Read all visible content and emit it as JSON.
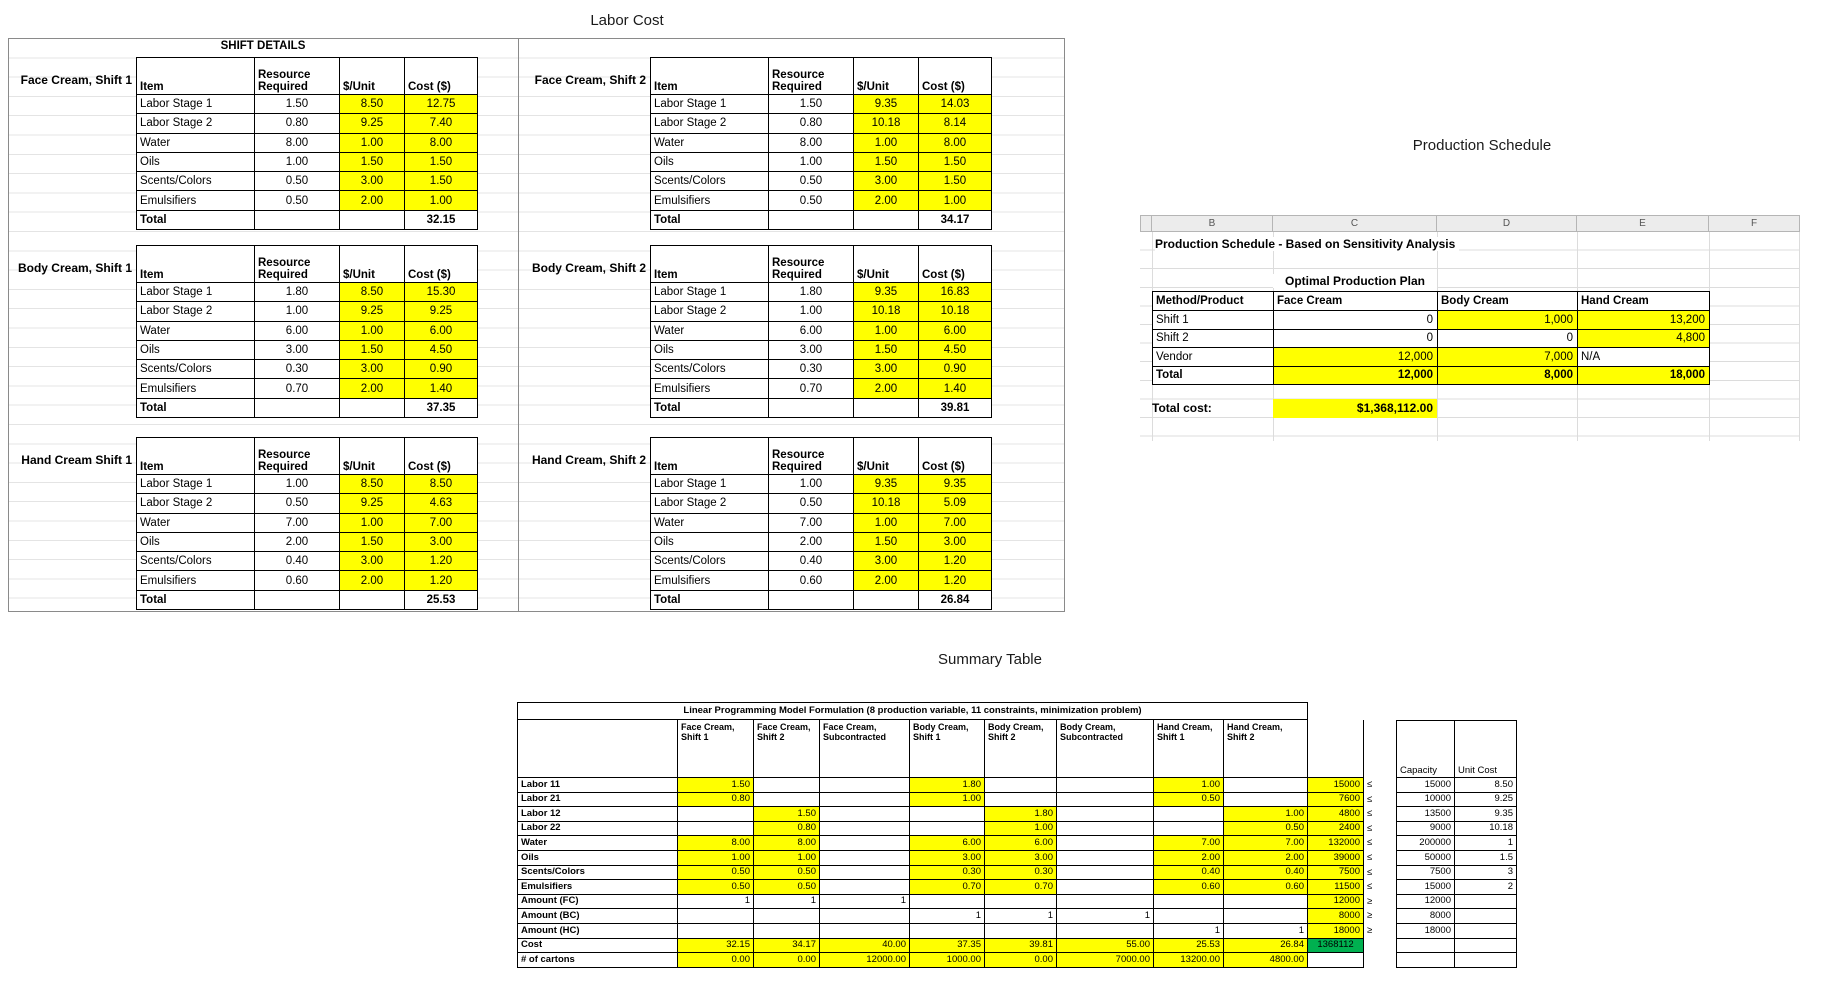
{
  "colors": {
    "highlight": "#FFFF00",
    "result_green": "#00B050",
    "gridline": "#dcdcdc"
  },
  "labor_section": {
    "title": "Labor Cost",
    "shift_details": "SHIFT DETAILS",
    "headers": {
      "item": "Item",
      "resource_line1": "Resource",
      "resource_line2": "Required",
      "unit": "$/Unit",
      "cost": "Cost ($)"
    },
    "total_label": "Total",
    "tables": [
      {
        "id": "face-cream-shift-1",
        "label": "Face Cream, Shift 1",
        "col": 0,
        "band": 0,
        "total": "32.15",
        "rows": [
          [
            "Labor Stage 1",
            "1.50",
            "8.50",
            "12.75"
          ],
          [
            "Labor Stage 2",
            "0.80",
            "9.25",
            "7.40"
          ],
          [
            "Water",
            "8.00",
            "1.00",
            "8.00"
          ],
          [
            "Oils",
            "1.00",
            "1.50",
            "1.50"
          ],
          [
            "Scents/Colors",
            "0.50",
            "3.00",
            "1.50"
          ],
          [
            "Emulsifiers",
            "0.50",
            "2.00",
            "1.00"
          ]
        ]
      },
      {
        "id": "face-cream-shift-2",
        "label": "Face Cream, Shift 2",
        "col": 1,
        "band": 0,
        "total": "34.17",
        "rows": [
          [
            "Labor Stage 1",
            "1.50",
            "9.35",
            "14.03"
          ],
          [
            "Labor Stage 2",
            "0.80",
            "10.18",
            "8.14"
          ],
          [
            "Water",
            "8.00",
            "1.00",
            "8.00"
          ],
          [
            "Oils",
            "1.00",
            "1.50",
            "1.50"
          ],
          [
            "Scents/Colors",
            "0.50",
            "3.00",
            "1.50"
          ],
          [
            "Emulsifiers",
            "0.50",
            "2.00",
            "1.00"
          ]
        ]
      },
      {
        "id": "body-cream-shift-1",
        "label": "Body Cream, Shift 1",
        "col": 0,
        "band": 1,
        "total": "37.35",
        "rows": [
          [
            "Labor Stage 1",
            "1.80",
            "8.50",
            "15.30"
          ],
          [
            "Labor Stage 2",
            "1.00",
            "9.25",
            "9.25"
          ],
          [
            "Water",
            "6.00",
            "1.00",
            "6.00"
          ],
          [
            "Oils",
            "3.00",
            "1.50",
            "4.50"
          ],
          [
            "Scents/Colors",
            "0.30",
            "3.00",
            "0.90"
          ],
          [
            "Emulsifiers",
            "0.70",
            "2.00",
            "1.40"
          ]
        ]
      },
      {
        "id": "body-cream-shift-2",
        "label": "Body Cream, Shift 2",
        "col": 1,
        "band": 1,
        "total": "39.81",
        "rows": [
          [
            "Labor Stage 1",
            "1.80",
            "9.35",
            "16.83"
          ],
          [
            "Labor Stage 2",
            "1.00",
            "10.18",
            "10.18"
          ],
          [
            "Water",
            "6.00",
            "1.00",
            "6.00"
          ],
          [
            "Oils",
            "3.00",
            "1.50",
            "4.50"
          ],
          [
            "Scents/Colors",
            "0.30",
            "3.00",
            "0.90"
          ],
          [
            "Emulsifiers",
            "0.70",
            "2.00",
            "1.40"
          ]
        ]
      },
      {
        "id": "hand-cream-shift-1",
        "label": "Hand Cream Shift 1",
        "col": 0,
        "band": 2,
        "total": "25.53",
        "rows": [
          [
            "Labor Stage 1",
            "1.00",
            "8.50",
            "8.50"
          ],
          [
            "Labor Stage 2",
            "0.50",
            "9.25",
            "4.63"
          ],
          [
            "Water",
            "7.00",
            "1.00",
            "7.00"
          ],
          [
            "Oils",
            "2.00",
            "1.50",
            "3.00"
          ],
          [
            "Scents/Colors",
            "0.40",
            "3.00",
            "1.20"
          ],
          [
            "Emulsifiers",
            "0.60",
            "2.00",
            "1.20"
          ]
        ]
      },
      {
        "id": "hand-cream-shift-2",
        "label": "Hand Cream, Shift 2",
        "col": 1,
        "band": 2,
        "total": "26.84",
        "rows": [
          [
            "Labor Stage 1",
            "1.00",
            "9.35",
            "9.35"
          ],
          [
            "Labor Stage 2",
            "0.50",
            "10.18",
            "5.09"
          ],
          [
            "Water",
            "7.00",
            "1.00",
            "7.00"
          ],
          [
            "Oils",
            "2.00",
            "1.50",
            "3.00"
          ],
          [
            "Scents/Colors",
            "0.40",
            "3.00",
            "1.20"
          ],
          [
            "Emulsifiers",
            "0.60",
            "2.00",
            "1.20"
          ]
        ]
      }
    ]
  },
  "production_schedule": {
    "title": "Production Schedule",
    "column_letters": [
      "B",
      "C",
      "D",
      "E",
      "F"
    ],
    "subtitle": "Production Schedule - Based on Sensitivity Analysis",
    "plan_title": "Optimal Production Plan",
    "headers": [
      "Method/Product",
      "Face Cream",
      "Body Cream",
      "Hand Cream"
    ],
    "rows": [
      {
        "label": "Shift 1",
        "bold": false,
        "cells": [
          {
            "v": "0",
            "y": false
          },
          {
            "v": "1,000",
            "y": true
          },
          {
            "v": "13,200",
            "y": true
          }
        ]
      },
      {
        "label": "Shift 2",
        "bold": false,
        "cells": [
          {
            "v": "0",
            "y": false
          },
          {
            "v": "0",
            "y": false
          },
          {
            "v": "4,800",
            "y": true
          }
        ]
      },
      {
        "label": "Vendor",
        "bold": false,
        "cells": [
          {
            "v": "12,000",
            "y": true
          },
          {
            "v": "7,000",
            "y": true
          },
          {
            "v": "N/A",
            "y": false,
            "left": true
          }
        ]
      },
      {
        "label": "Total",
        "bold": true,
        "cells": [
          {
            "v": "12,000",
            "y": true
          },
          {
            "v": "8,000",
            "y": true
          },
          {
            "v": "18,000",
            "y": true
          }
        ]
      }
    ],
    "total_cost_label": "Total cost:",
    "total_cost_value": "$1,368,112.00"
  },
  "summary": {
    "section_title": "Summary Table",
    "table_title": "Linear Programming Model Formulation (8 production variable, 11 constraints, minimization problem)",
    "col_headers": [
      [
        "Face Cream,",
        "Shift 1"
      ],
      [
        "Face Cream,",
        "Shift 2"
      ],
      [
        "Face Cream,",
        "Subcontracted"
      ],
      [
        "Body Cream,",
        "Shift 1"
      ],
      [
        "Body Cream,",
        "Shift 2"
      ],
      [
        "Body Cream,",
        "Subcontracted"
      ],
      [
        "Hand Cream,",
        "Shift 1"
      ],
      [
        "Hand Cream,",
        "Shift 2"
      ]
    ],
    "capacity_label": "Capacity",
    "unit_cost_label": "Unit Cost",
    "rows": [
      {
        "label": "Labor 11",
        "fill": "res",
        "cells": [
          "1.50",
          "",
          "",
          "1.80",
          "",
          "",
          "1.00",
          ""
        ],
        "total": "15000",
        "total_fill": "yellow",
        "sign": "≤",
        "capacity": "15000",
        "unit_cost": "8.50"
      },
      {
        "label": "Labor 21",
        "fill": "res",
        "cells": [
          "0.80",
          "",
          "",
          "1.00",
          "",
          "",
          "0.50",
          ""
        ],
        "total": "7600",
        "total_fill": "yellow",
        "sign": "≤",
        "capacity": "10000",
        "unit_cost": "9.25"
      },
      {
        "label": "Labor 12",
        "fill": "res",
        "cells": [
          "",
          "1.50",
          "",
          "",
          "1.80",
          "",
          "",
          "1.00"
        ],
        "total": "4800",
        "total_fill": "yellow",
        "sign": "≤",
        "capacity": "13500",
        "unit_cost": "9.35"
      },
      {
        "label": "Labor 22",
        "fill": "res",
        "cells": [
          "",
          "0.80",
          "",
          "",
          "1.00",
          "",
          "",
          "0.50"
        ],
        "total": "2400",
        "total_fill": "yellow",
        "sign": "≤",
        "capacity": "9000",
        "unit_cost": "10.18"
      },
      {
        "label": "Water",
        "fill": "res",
        "cells": [
          "8.00",
          "8.00",
          "",
          "6.00",
          "6.00",
          "",
          "7.00",
          "7.00"
        ],
        "total": "132000",
        "total_fill": "yellow",
        "sign": "≤",
        "capacity": "200000",
        "unit_cost": "1"
      },
      {
        "label": "Oils",
        "fill": "res",
        "cells": [
          "1.00",
          "1.00",
          "",
          "3.00",
          "3.00",
          "",
          "2.00",
          "2.00"
        ],
        "total": "39000",
        "total_fill": "yellow",
        "sign": "≤",
        "capacity": "50000",
        "unit_cost": "1.5"
      },
      {
        "label": "Scents/Colors",
        "fill": "res",
        "cells": [
          "0.50",
          "0.50",
          "",
          "0.30",
          "0.30",
          "",
          "0.40",
          "0.40"
        ],
        "total": "7500",
        "total_fill": "yellow",
        "sign": "≤",
        "capacity": "7500",
        "unit_cost": "3"
      },
      {
        "label": "Emulsifiers",
        "fill": "res",
        "cells": [
          "0.50",
          "0.50",
          "",
          "0.70",
          "0.70",
          "",
          "0.60",
          "0.60"
        ],
        "total": "11500",
        "total_fill": "yellow",
        "sign": "≤",
        "capacity": "15000",
        "unit_cost": "2"
      },
      {
        "label": "Amount (FC)",
        "fill": "amt",
        "cells": [
          "1",
          "1",
          "1",
          "",
          "",
          "",
          "",
          ""
        ],
        "total": "12000",
        "total_fill": "yellow",
        "sign": "≥",
        "capacity": "12000",
        "unit_cost": ""
      },
      {
        "label": "Amount (BC)",
        "fill": "amt",
        "cells": [
          "",
          "",
          "",
          "1",
          "1",
          "1",
          "",
          ""
        ],
        "total": "8000",
        "total_fill": "yellow",
        "sign": "≥",
        "capacity": "8000",
        "unit_cost": ""
      },
      {
        "label": "Amount (HC)",
        "fill": "amt",
        "cells": [
          "",
          "",
          "",
          "",
          "",
          "",
          "1",
          "1"
        ],
        "total": "18000",
        "total_fill": "yellow",
        "sign": "≥",
        "capacity": "18000",
        "unit_cost": ""
      },
      {
        "label": "Cost",
        "fill": "yellow",
        "cells": [
          "32.15",
          "34.17",
          "40.00",
          "37.35",
          "39.81",
          "55.00",
          "25.53",
          "26.84"
        ],
        "total": "1368112",
        "total_fill": "green",
        "sign": "",
        "capacity": "",
        "unit_cost": ""
      },
      {
        "label": "# of cartons",
        "fill": "yellow",
        "cells": [
          "0.00",
          "0.00",
          "12000.00",
          "1000.00",
          "0.00",
          "7000.00",
          "13200.00",
          "4800.00"
        ],
        "total": "",
        "total_fill": "white",
        "sign": "",
        "capacity": "",
        "unit_cost": ""
      }
    ]
  }
}
